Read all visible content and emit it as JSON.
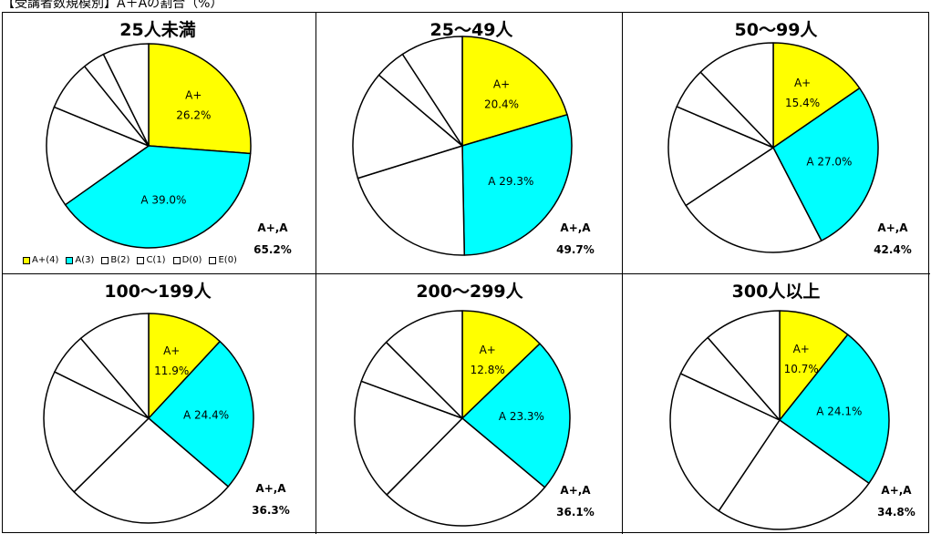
{
  "page": {
    "title": "【受講者数規模別】A＋Aの割合（%）"
  },
  "colors": {
    "aplus": "#ffff00",
    "a": "#00ffff",
    "other": "#ffffff",
    "stroke": "#000000"
  },
  "legend": {
    "items": [
      {
        "label": "A+(4)",
        "color": "#ffff00"
      },
      {
        "label": "A(3)",
        "color": "#00ffff"
      },
      {
        "label": "B(2)",
        "color": "#ffffff"
      },
      {
        "label": "C(1)",
        "color": "#ffffff"
      },
      {
        "label": "D(0)",
        "color": "#ffffff"
      },
      {
        "label": "E(0)",
        "color": "#ffffff"
      }
    ]
  },
  "chart_data": [
    {
      "type": "pie",
      "title": "25人未満",
      "categories": [
        "A+(4)",
        "A(3)",
        "B(2)",
        "C(1)",
        "D(0)",
        "E(0)"
      ],
      "values": [
        26.2,
        39.0,
        16.0,
        8.0,
        3.5,
        7.3
      ],
      "slice_labels": [
        [
          "A+",
          "26.2%"
        ],
        [
          "A 39.0%"
        ]
      ],
      "sum_label": "A+,A",
      "sum_value": "65.2%"
    },
    {
      "type": "pie",
      "title": "25〜49人",
      "categories": [
        "A+(4)",
        "A(3)",
        "B(2)",
        "C(1)",
        "D(0)",
        "E(0)"
      ],
      "values": [
        20.4,
        29.3,
        20.5,
        16.0,
        4.6,
        9.2
      ],
      "slice_labels": [
        [
          "A+",
          "20.4%"
        ],
        [
          "A 29.3%"
        ]
      ],
      "sum_label": "A+,A",
      "sum_value": "49.7%"
    },
    {
      "type": "pie",
      "title": "50〜99人",
      "categories": [
        "A+(4)",
        "A(3)",
        "B(2)",
        "C(1)",
        "D(0)",
        "E(0)"
      ],
      "values": [
        15.4,
        27.0,
        23.3,
        15.7,
        6.4,
        12.2
      ],
      "slice_labels": [
        [
          "A+",
          "15.4%"
        ],
        [
          "A 27.0%"
        ]
      ],
      "sum_label": "A+,A",
      "sum_value": "42.4%"
    },
    {
      "type": "pie",
      "title": "100〜199人",
      "categories": [
        "A+(4)",
        "A(3)",
        "B(2)",
        "C(1)",
        "D(0)",
        "E(0)"
      ],
      "values": [
        11.9,
        24.4,
        26.3,
        19.7,
        6.5,
        11.2
      ],
      "slice_labels": [
        [
          "A+",
          "11.9%"
        ],
        [
          "A 24.4%"
        ]
      ],
      "sum_label": "A+,A",
      "sum_value": "36.3%"
    },
    {
      "type": "pie",
      "title": "200〜299人",
      "categories": [
        "A+(4)",
        "A(3)",
        "B(2)",
        "C(1)",
        "D(0)",
        "E(0)"
      ],
      "values": [
        12.8,
        23.3,
        26.3,
        18.2,
        6.9,
        12.5
      ],
      "slice_labels": [
        [
          "A+",
          "12.8%"
        ],
        [
          "A 23.3%"
        ]
      ],
      "sum_label": "A+,A",
      "sum_value": "36.1%"
    },
    {
      "type": "pie",
      "title": "300人以上",
      "categories": [
        "A+(4)",
        "A(3)",
        "B(2)",
        "C(1)",
        "D(0)",
        "E(0)"
      ],
      "values": [
        10.7,
        24.1,
        24.6,
        22.6,
        6.6,
        11.4
      ],
      "slice_labels": [
        [
          "A+",
          "10.7%"
        ],
        [
          "A 24.1%"
        ]
      ],
      "sum_label": "A+,A",
      "sum_value": "34.8%"
    }
  ]
}
